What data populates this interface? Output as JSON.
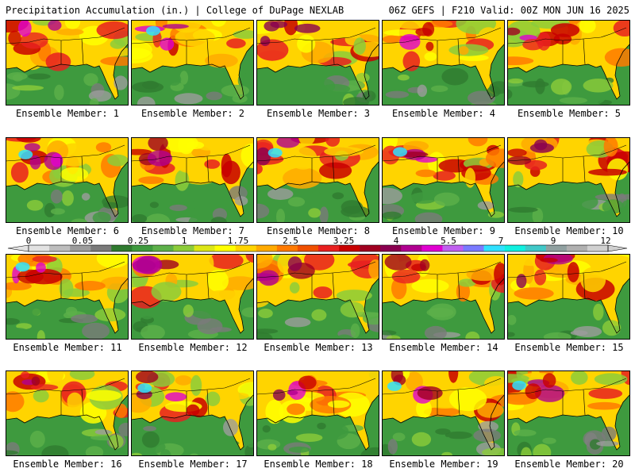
{
  "header": {
    "title_left": "Precipitation Accumulation (in.) | College of DuPage NEXLAB",
    "title_right": "06Z GEFS | F210 Valid: 00Z MON JUN 16 2025"
  },
  "colorbar": {
    "labels": [
      "0",
      "0.05",
      "0.25",
      "1",
      "1.75",
      "2.5",
      "3.25",
      "4",
      "5.5",
      "7",
      "9",
      "12"
    ],
    "colors": [
      "#e2e2e2",
      "#bdbdbd",
      "#9c9c9c",
      "#7a7a7a",
      "#2f7a2f",
      "#3e9a3e",
      "#5db04a",
      "#8ccc3a",
      "#dce617",
      "#ffff00",
      "#ffd400",
      "#ffaa00",
      "#ff7a00",
      "#f05000",
      "#e82020",
      "#c80000",
      "#a00020",
      "#8a0050",
      "#b00090",
      "#e000d0",
      "#c060f0",
      "#7a7aff",
      "#30e0ff",
      "#10f0e0",
      "#40c8c8",
      "#90a0a0",
      "#b0b0b0",
      "#d0d0d0"
    ]
  },
  "panels": [
    {
      "caption": "Ensemble Member: 1"
    },
    {
      "caption": "Ensemble Member: 2"
    },
    {
      "caption": "Ensemble Member: 3"
    },
    {
      "caption": "Ensemble Member: 4"
    },
    {
      "caption": "Ensemble Member: 5"
    },
    {
      "caption": "Ensemble Member: 6"
    },
    {
      "caption": "Ensemble Member: 7"
    },
    {
      "caption": "Ensemble Member: 8"
    },
    {
      "caption": "Ensemble Member: 9"
    },
    {
      "caption": "Ensemble Member: 10"
    },
    {
      "caption": "Ensemble Member: 11"
    },
    {
      "caption": "Ensemble Member: 12"
    },
    {
      "caption": "Ensemble Member: 13"
    },
    {
      "caption": "Ensemble Member: 14"
    },
    {
      "caption": "Ensemble Member: 15"
    },
    {
      "caption": "Ensemble Member: 16"
    },
    {
      "caption": "Ensemble Member: 17"
    },
    {
      "caption": "Ensemble Member: 18"
    },
    {
      "caption": "Ensemble Member: 19"
    },
    {
      "caption": "Ensemble Member: 20"
    }
  ]
}
